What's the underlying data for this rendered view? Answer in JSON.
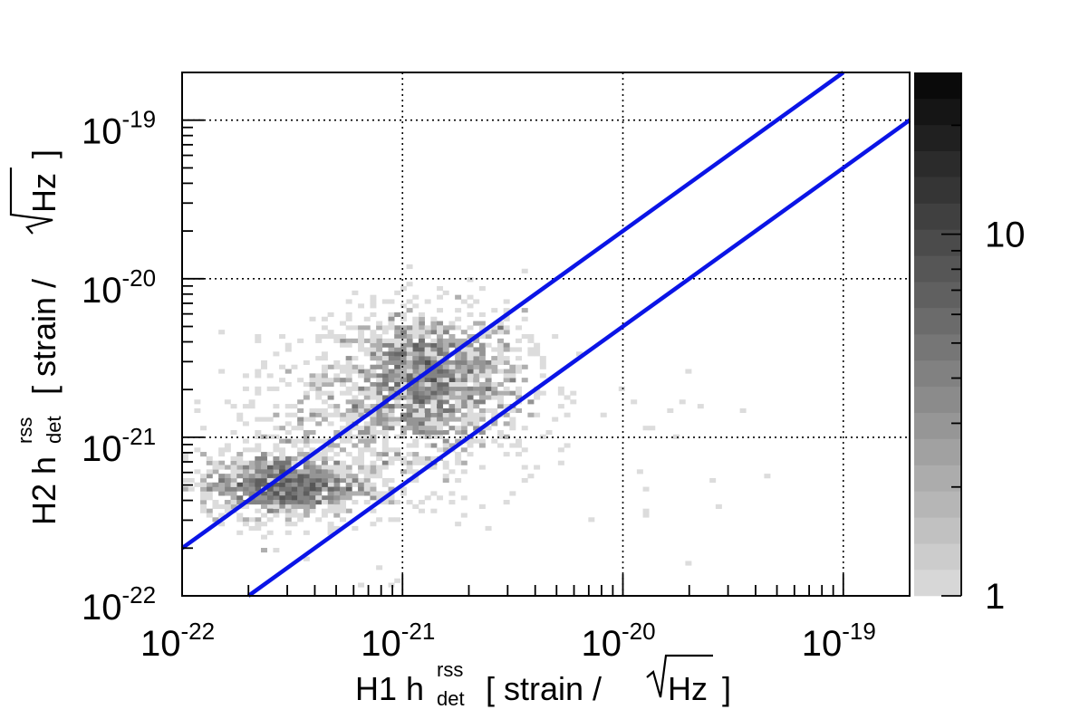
{
  "chart_data": {
    "type": "heatmap",
    "title": "",
    "x_axis": {
      "scale": "log",
      "range": [
        1e-22,
        2e-19
      ],
      "tick_labels": [
        {
          "value": 1e-22,
          "base": "10",
          "exp": "-22"
        },
        {
          "value": 1e-21,
          "base": "10",
          "exp": "-21"
        },
        {
          "value": 1e-20,
          "base": "10",
          "exp": "-20"
        },
        {
          "value": 1e-19,
          "base": "10",
          "exp": "-19"
        }
      ],
      "label": {
        "prefix": "H1 h",
        "superscript": "rss",
        "subscript": "det",
        "bracket_open": "[ strain / ",
        "sqrt_content": "Hz",
        "bracket_close": " ]"
      }
    },
    "y_axis": {
      "scale": "log",
      "range": [
        1e-22,
        2e-19
      ],
      "tick_labels": [
        {
          "value": 1e-22,
          "base": "10",
          "exp": "-22"
        },
        {
          "value": 1e-21,
          "base": "10",
          "exp": "-21"
        },
        {
          "value": 1e-20,
          "base": "10",
          "exp": "-20"
        },
        {
          "value": 1e-19,
          "base": "10",
          "exp": "-19"
        }
      ],
      "label": {
        "prefix": "H2 h",
        "superscript": "rss",
        "subscript": "det",
        "bracket_open": "[ strain / ",
        "sqrt_content": "Hz",
        "bracket_close": " ]"
      }
    },
    "grid": true,
    "colorbar": {
      "scale": "log",
      "range": [
        1,
        28
      ],
      "tick_labels": [
        {
          "value": 1,
          "text": "1"
        },
        {
          "value": 10,
          "text": "10"
        }
      ],
      "color_low": "#dcdcdc",
      "color_high": "#050505"
    },
    "lines": [
      {
        "x": [
          1e-22,
          1e-19
        ],
        "y": [
          2e-22,
          2e-19
        ],
        "color": "#0a14e6",
        "relation": "y = 2x"
      },
      {
        "x": [
          2e-22,
          2e-19
        ],
        "y": [
          1e-22,
          1e-19
        ],
        "color": "#0a14e6",
        "relation": "y = x/2"
      }
    ],
    "density_clusters": [
      {
        "center": [
          1.3e-21,
          2.3e-21
        ],
        "spread": [
          0.22,
          0.22
        ],
        "count": 1500,
        "peak": 20
      },
      {
        "center": [
          2.8e-22,
          5e-22
        ],
        "spread": [
          0.18,
          0.1
        ],
        "count": 900,
        "peak": 12
      },
      {
        "center": [
          6e-22,
          1e-21
        ],
        "spread": [
          0.3,
          0.3
        ],
        "count": 450,
        "peak": 6
      },
      {
        "center": [
          6e-21,
          8e-22
        ],
        "spread": [
          0.55,
          0.35
        ],
        "count": 45,
        "peak": 3
      }
    ]
  }
}
